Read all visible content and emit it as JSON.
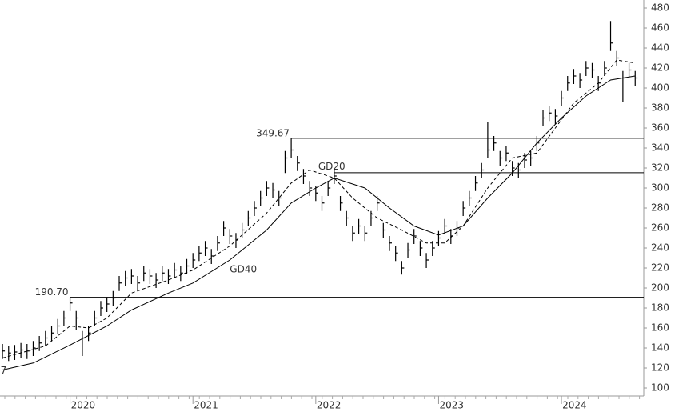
{
  "chart_data": {
    "type": "ohlc",
    "x": [
      2019.45,
      2019.5,
      2019.55,
      2019.6,
      2019.65,
      2019.7,
      2019.75,
      2019.8,
      2019.85,
      2019.9,
      2019.95,
      2020.0,
      2020.05,
      2020.1,
      2020.15,
      2020.2,
      2020.25,
      2020.3,
      2020.35,
      2020.4,
      2020.45,
      2020.5,
      2020.55,
      2020.6,
      2020.65,
      2020.7,
      2020.75,
      2020.8,
      2020.85,
      2020.9,
      2020.95,
      2021.0,
      2021.05,
      2021.1,
      2021.15,
      2021.2,
      2021.25,
      2021.3,
      2021.35,
      2021.4,
      2021.45,
      2021.5,
      2021.55,
      2021.6,
      2021.65,
      2021.7,
      2021.75,
      2021.8,
      2021.85,
      2021.9,
      2021.95,
      2022.0,
      2022.05,
      2022.1,
      2022.15,
      2022.2,
      2022.25,
      2022.3,
      2022.35,
      2022.4,
      2022.45,
      2022.5,
      2022.55,
      2022.6,
      2022.65,
      2022.7,
      2022.75,
      2022.8,
      2022.85,
      2022.9,
      2022.95,
      2023.0,
      2023.05,
      2023.1,
      2023.15,
      2023.2,
      2023.25,
      2023.3,
      2023.35,
      2023.4,
      2023.45,
      2023.5,
      2023.55,
      2023.6,
      2023.65,
      2023.7,
      2023.75,
      2023.8,
      2023.85,
      2023.9,
      2023.95,
      2024.0,
      2024.05,
      2024.1,
      2024.15,
      2024.2,
      2024.25,
      2024.3,
      2024.35,
      2024.4,
      2024.45,
      2024.5,
      2024.55,
      2024.6
    ],
    "close": [
      137,
      135,
      136,
      138,
      137,
      140,
      145,
      150,
      155,
      162,
      170,
      185,
      170,
      150,
      155,
      170,
      180,
      184,
      190,
      205,
      210,
      212,
      205,
      215,
      212,
      208,
      215,
      212,
      218,
      215,
      222,
      228,
      235,
      240,
      232,
      245,
      260,
      252,
      248,
      258,
      270,
      280,
      290,
      300,
      298,
      290,
      330,
      338,
      325,
      312,
      300,
      295,
      285,
      300,
      312,
      285,
      270,
      255,
      262,
      255,
      270,
      285,
      258,
      245,
      235,
      220,
      238,
      252,
      240,
      228,
      240,
      250,
      262,
      252,
      260,
      280,
      290,
      305,
      318,
      338,
      345,
      330,
      335,
      320,
      318,
      328,
      330,
      345,
      370,
      375,
      372,
      390,
      405,
      412,
      408,
      420,
      418,
      405,
      420,
      445,
      430,
      410,
      418,
      410
    ],
    "high": [
      144,
      142,
      143,
      145,
      144,
      147,
      152,
      157,
      162,
      169,
      177,
      190.7,
      177,
      157,
      162,
      177,
      187,
      191,
      197,
      212,
      217,
      219,
      212,
      222,
      219,
      215,
      222,
      219,
      225,
      222,
      229,
      235,
      242,
      247,
      239,
      252,
      267,
      259,
      255,
      265,
      277,
      287,
      297,
      307,
      305,
      297,
      337,
      349.67,
      332,
      319,
      307,
      302,
      292,
      307,
      319,
      292,
      277,
      262,
      269,
      262,
      277,
      292,
      265,
      252,
      242,
      227,
      245,
      259,
      247,
      235,
      247,
      257,
      269,
      259,
      267,
      287,
      297,
      312,
      325,
      366,
      352,
      337,
      342,
      327,
      325,
      335,
      337,
      352,
      378,
      382,
      379,
      397,
      412,
      419,
      415,
      427,
      425,
      412,
      427,
      467,
      437,
      417,
      425,
      417
    ],
    "low": [
      129,
      127,
      128,
      130,
      129,
      132,
      137,
      142,
      147,
      154,
      162,
      177,
      158,
      132,
      147,
      162,
      172,
      176,
      182,
      197,
      202,
      204,
      197,
      207,
      204,
      200,
      207,
      204,
      210,
      207,
      214,
      220,
      227,
      232,
      224,
      237,
      252,
      244,
      240,
      250,
      262,
      272,
      282,
      292,
      290,
      282,
      315,
      330,
      317,
      304,
      292,
      287,
      277,
      292,
      304,
      277,
      262,
      247,
      254,
      247,
      262,
      277,
      250,
      237,
      227,
      213.43,
      230,
      244,
      232,
      220,
      232,
      242,
      254,
      244,
      252,
      272,
      282,
      297,
      310,
      330,
      337,
      322,
      327,
      312,
      310,
      320,
      322,
      337,
      362,
      367,
      364,
      382,
      397,
      404,
      400,
      412,
      410,
      397,
      412,
      437,
      422,
      386,
      410,
      402
    ],
    "color": "#000000",
    "series": [
      {
        "name": "GD20",
        "dashed": true,
        "color": "#000000",
        "x": [
          2019.45,
          2019.8,
          2020.0,
          2020.15,
          2020.3,
          2020.5,
          2020.8,
          2021.0,
          2021.3,
          2021.6,
          2021.8,
          2021.95,
          2022.15,
          2022.3,
          2022.5,
          2022.7,
          2022.9,
          2023.05,
          2023.2,
          2023.4,
          2023.6,
          2023.8,
          2023.95,
          2024.1,
          2024.3,
          2024.45,
          2024.6
        ],
        "values": [
          130,
          142,
          162,
          160,
          170,
          195,
          208,
          218,
          242,
          275,
          305,
          318,
          310,
          290,
          270,
          258,
          245,
          245,
          262,
          300,
          330,
          335,
          360,
          385,
          405,
          428,
          425
        ]
      },
      {
        "name": "GD40",
        "dashed": false,
        "color": "#000000",
        "x": [
          2019.45,
          2019.7,
          2020.0,
          2020.3,
          2020.5,
          2020.8,
          2021.0,
          2021.3,
          2021.6,
          2021.8,
          2022.0,
          2022.15,
          2022.4,
          2022.6,
          2022.8,
          2023.0,
          2023.2,
          2023.4,
          2023.6,
          2023.8,
          2024.0,
          2024.2,
          2024.4,
          2024.6
        ],
        "values": [
          118,
          125,
          143,
          162,
          178,
          195,
          205,
          228,
          258,
          285,
          300,
          310,
          300,
          280,
          262,
          253,
          262,
          290,
          315,
          345,
          370,
          392,
          408,
          412
        ]
      }
    ],
    "levels": [
      349.67,
      315.3,
      190.7
    ],
    "level_labels": [
      "349.67",
      null,
      "190.70"
    ],
    "level_starts": [
      2021.8,
      2022.15,
      2020.0
    ],
    "xlim": [
      2019.43,
      2024.67
    ],
    "xticks": [
      2020,
      2021,
      2022,
      2023,
      2024
    ],
    "ylim": [
      92,
      488
    ],
    "yticks": [
      100,
      120,
      140,
      160,
      180,
      200,
      220,
      240,
      260,
      280,
      300,
      320,
      340,
      360,
      380,
      400,
      420,
      440,
      460,
      480
    ]
  }
}
